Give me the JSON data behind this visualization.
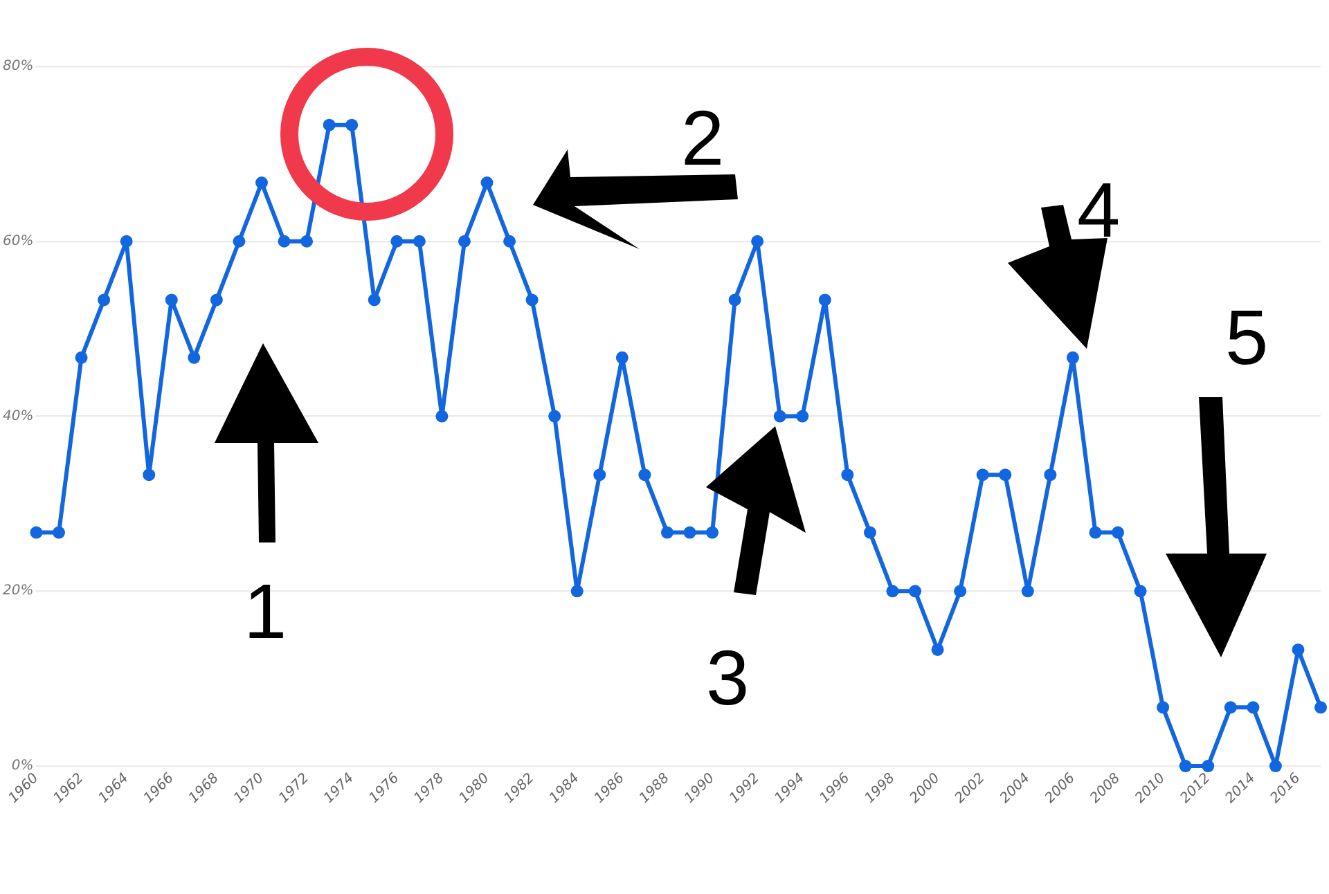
{
  "chart_data": {
    "type": "line",
    "x": [
      1960,
      1961,
      1962,
      1963,
      1964,
      1965,
      1966,
      1967,
      1968,
      1969,
      1970,
      1971,
      1972,
      1973,
      1974,
      1975,
      1976,
      1977,
      1978,
      1979,
      1980,
      1981,
      1982,
      1983,
      1984,
      1985,
      1986,
      1987,
      1988,
      1989,
      1990,
      1991,
      1992,
      1993,
      1994,
      1995,
      1996,
      1997,
      1998,
      1999,
      2000,
      2001,
      2002,
      2003,
      2004,
      2005,
      2006,
      2007,
      2008,
      2009,
      2010,
      2011,
      2012,
      2013,
      2014,
      2015,
      2016,
      2017
    ],
    "series": [
      {
        "color": "#1266e0",
        "values": [
          26.7,
          26.7,
          46.7,
          53.3,
          60,
          33.3,
          53.3,
          46.7,
          53.3,
          60,
          66.7,
          60,
          60,
          73.3,
          73.3,
          53.3,
          60,
          60,
          40,
          60,
          66.7,
          60,
          53.3,
          40,
          20,
          33.3,
          46.7,
          33.3,
          26.7,
          26.7,
          26.7,
          53.3,
          60,
          40,
          40,
          53.3,
          33.3,
          26.7,
          20,
          20,
          13.3,
          20,
          33.3,
          33.3,
          20,
          33.3,
          46.7,
          26.7,
          26.7,
          20,
          6.7,
          0,
          0,
          6.7,
          6.7,
          0,
          13.3,
          6.7
        ]
      }
    ],
    "xlim": [
      1960,
      2017
    ],
    "xticks": [
      1960,
      1962,
      1964,
      1966,
      1968,
      1970,
      1972,
      1974,
      1976,
      1978,
      1980,
      1982,
      1984,
      1986,
      1988,
      1990,
      1992,
      1994,
      1996,
      1998,
      2000,
      2002,
      2004,
      2006,
      2008,
      2010,
      2012,
      2014,
      2016
    ],
    "ylim": [
      0,
      80
    ],
    "yticks": [
      {
        "value": 0,
        "label": "0%"
      },
      {
        "value": 20,
        "label": "20%"
      },
      {
        "value": 40,
        "label": "40%"
      },
      {
        "value": 60,
        "label": "60%"
      },
      {
        "value": 80,
        "label": "80%"
      }
    ],
    "grid": "y",
    "legend": false,
    "marker": "circle",
    "line_style": "solid",
    "annotations": [
      "1",
      "2",
      "3",
      "4",
      "5"
    ]
  }
}
